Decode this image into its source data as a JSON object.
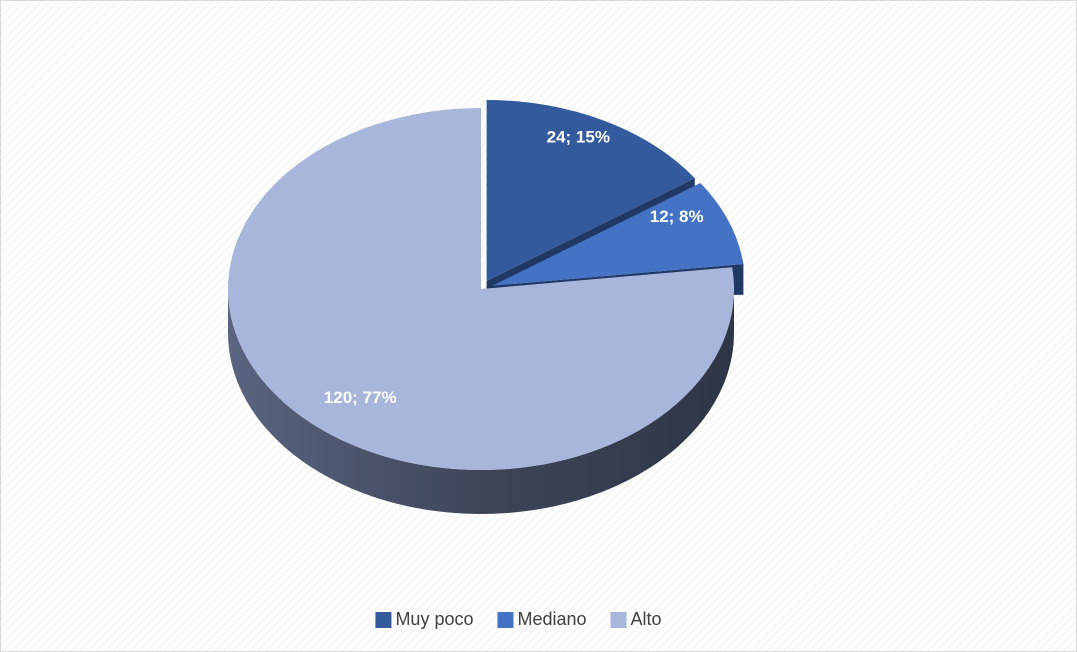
{
  "chart_data": {
    "type": "pie",
    "categories": [
      "Muy poco",
      "Mediano",
      "Alto"
    ],
    "values": [
      24,
      12,
      120
    ],
    "value_labels": [
      "24; 15%",
      "12; 8%",
      "120; 77%"
    ],
    "colors": [
      "#335a9c",
      "#4472c4",
      "#a9b6dc"
    ],
    "legend": "bottom"
  }
}
